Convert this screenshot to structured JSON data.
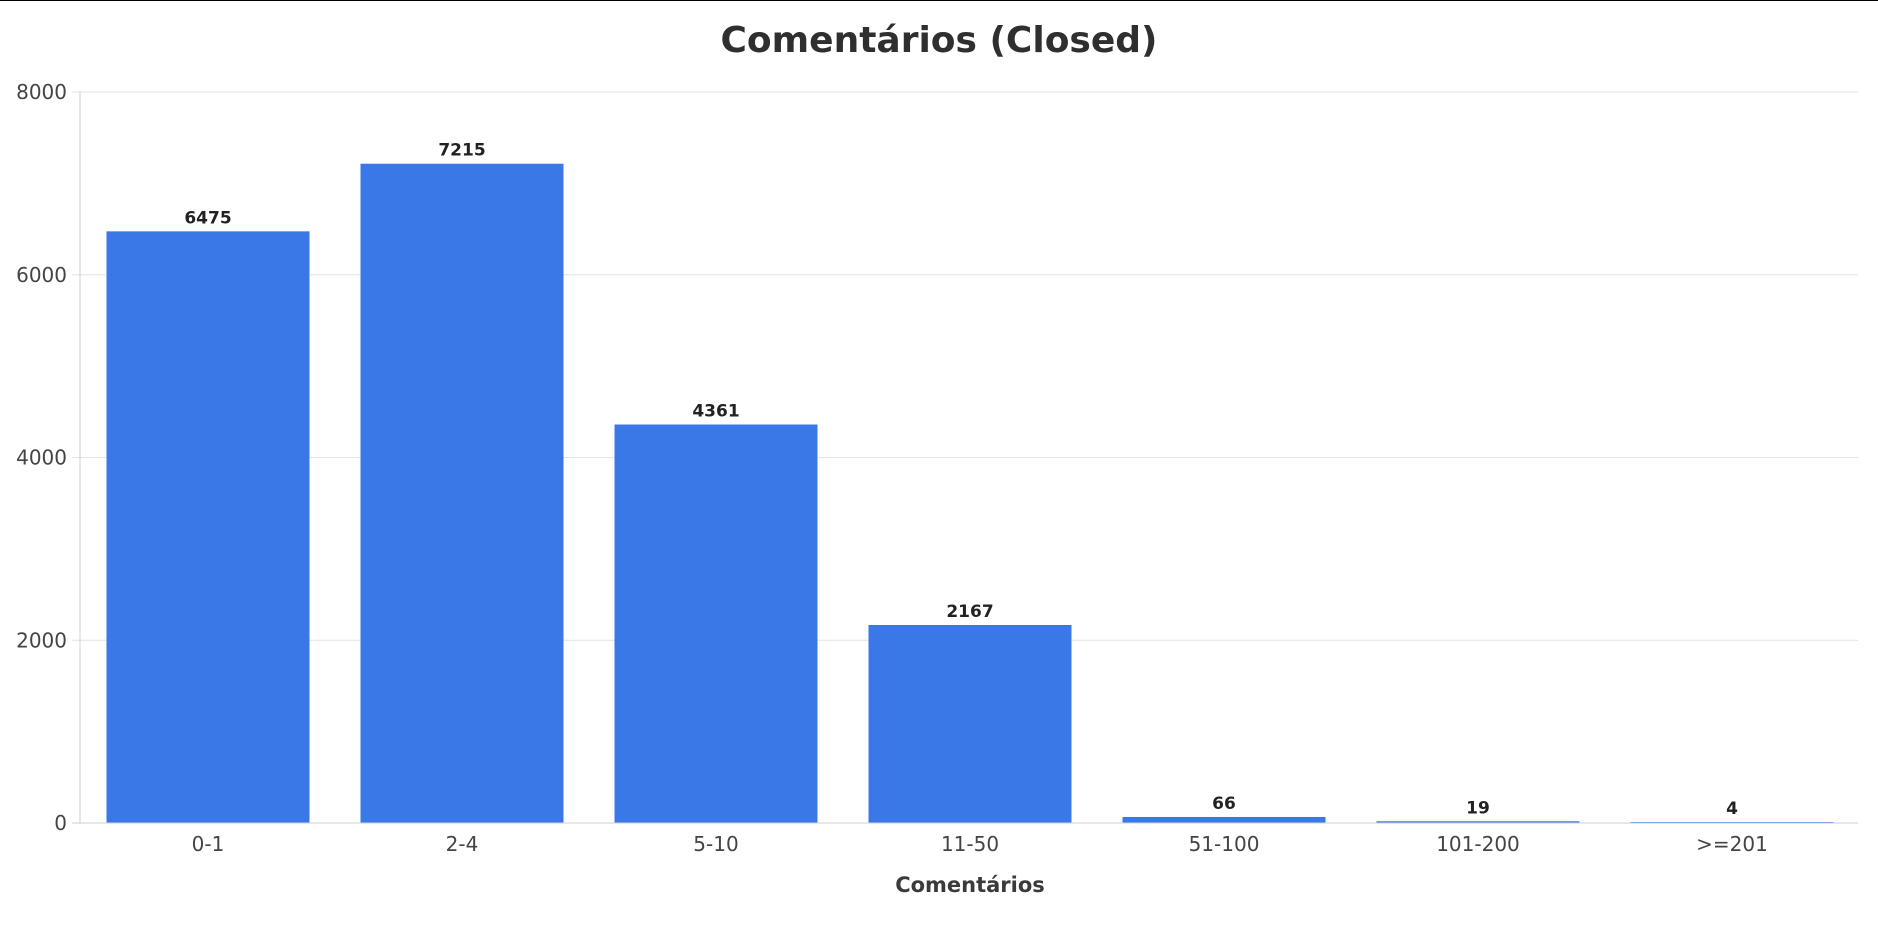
{
  "chart_data": {
    "type": "bar",
    "title": "Comentários (Closed)",
    "xlabel": "Comentários",
    "ylabel": "",
    "categories": [
      "0-1",
      "2-4",
      "5-10",
      "11-50",
      "51-100",
      "101-200",
      ">=201"
    ],
    "values": [
      6475,
      7215,
      4361,
      2167,
      66,
      19,
      4
    ],
    "data_labels": [
      "6475",
      "7215",
      "4361",
      "2167",
      "66",
      "19",
      "4"
    ],
    "ylim": [
      0,
      8000
    ],
    "yticks": [
      0,
      2000,
      4000,
      6000,
      8000
    ],
    "ytick_labels": [
      "0",
      "2000",
      "4000",
      "6000",
      "8000"
    ],
    "grid": true,
    "legend": "none",
    "bar_color": "#3b78e7"
  }
}
